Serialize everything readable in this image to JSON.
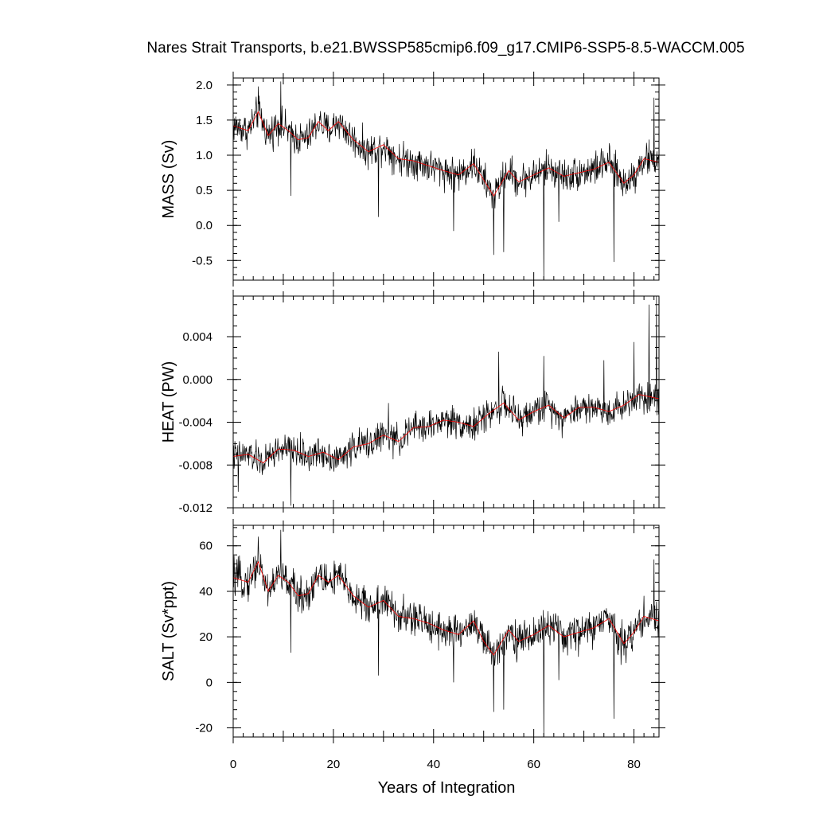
{
  "chart_data": {
    "type": "line",
    "title": "Nares Strait Transports, b.e21.BWSSP585cmip6.f09_g17.CMIP6-SSP5-8.5-WACCM.005",
    "xlabel": "Years of Integration",
    "xlim": [
      0,
      85
    ],
    "x_ticks": [
      0,
      20,
      40,
      60,
      80
    ],
    "x_tick_labels": [
      "0",
      "20",
      "40",
      "60",
      "80"
    ],
    "series_colors": {
      "monthly": "#000000",
      "running_mean": "#ff0000"
    },
    "grid": false,
    "legend": "none",
    "panels": [
      {
        "ylabel": "MASS (Sv)",
        "ylim": [
          -0.78,
          2.1
        ],
        "y_ticks": [
          -0.5,
          0.0,
          0.5,
          1.0,
          1.5,
          2.0
        ],
        "y_tick_labels": [
          "-0.5",
          "0.0",
          "0.5",
          "1.0",
          "1.5",
          "2.0"
        ],
        "y_minor_step": 0.1,
        "anchor_x": [
          0,
          3,
          5,
          7,
          9,
          11,
          13,
          15,
          17,
          19,
          21,
          24,
          27,
          30,
          33,
          36,
          39,
          42,
          45,
          48,
          50,
          52,
          55,
          57,
          60,
          63,
          66,
          69,
          72,
          75,
          78,
          80,
          82,
          85
        ],
        "anchor_mean": [
          1.42,
          1.35,
          1.62,
          1.28,
          1.45,
          1.35,
          1.22,
          1.25,
          1.48,
          1.35,
          1.48,
          1.22,
          1.05,
          1.15,
          0.95,
          0.92,
          0.85,
          0.78,
          0.72,
          0.88,
          0.65,
          0.42,
          0.78,
          0.62,
          0.72,
          0.82,
          0.7,
          0.75,
          0.8,
          0.9,
          0.6,
          0.72,
          0.95,
          0.9
        ],
        "noise_amplitude": 0.3,
        "spikes": [
          [
            5,
            1.98
          ],
          [
            9.5,
            2.05
          ],
          [
            11.5,
            0.42
          ],
          [
            29,
            0.12
          ],
          [
            44,
            -0.08
          ],
          [
            52,
            -0.42
          ],
          [
            54,
            -0.38
          ],
          [
            62,
            -0.78
          ],
          [
            65,
            0.05
          ],
          [
            76,
            -0.52
          ],
          [
            84,
            1.82
          ]
        ]
      },
      {
        "ylabel": "HEAT (PW)",
        "ylim": [
          -0.012,
          0.0078
        ],
        "y_ticks": [
          -0.012,
          -0.008,
          -0.004,
          0.0,
          0.004
        ],
        "y_tick_labels": [
          "-0.012",
          "-0.008",
          "-0.004",
          "0.000",
          "0.004"
        ],
        "y_minor_step": 0.001,
        "anchor_x": [
          0,
          3,
          6,
          9,
          12,
          15,
          18,
          21,
          24,
          27,
          30,
          33,
          36,
          39,
          42,
          45,
          48,
          51,
          54,
          57,
          60,
          63,
          66,
          69,
          72,
          75,
          78,
          81,
          85
        ],
        "anchor_mean": [
          -0.0072,
          -0.007,
          -0.0078,
          -0.0065,
          -0.0066,
          -0.0072,
          -0.0068,
          -0.0075,
          -0.0063,
          -0.006,
          -0.0052,
          -0.0058,
          -0.0045,
          -0.0044,
          -0.0038,
          -0.004,
          -0.0044,
          -0.0032,
          -0.0022,
          -0.0038,
          -0.003,
          -0.0024,
          -0.0036,
          -0.0026,
          -0.0026,
          -0.003,
          -0.0024,
          -0.0014,
          -0.0018
        ],
        "noise_amplitude": 0.0018,
        "spikes": [
          [
            1,
            -0.0105
          ],
          [
            11.5,
            -0.0118
          ],
          [
            31,
            -0.0022
          ],
          [
            53,
            0.0026
          ],
          [
            62,
            0.0022
          ],
          [
            74,
            0.0018
          ],
          [
            80,
            0.0035
          ],
          [
            83,
            0.007
          ],
          [
            84.5,
            0.0078
          ]
        ]
      },
      {
        "ylabel": "SALT (Sv*ppt)",
        "ylim": [
          -24,
          69
        ],
        "y_ticks": [
          -20,
          0,
          20,
          40,
          60
        ],
        "y_tick_labels": [
          "-20",
          "0",
          "20",
          "40",
          "60"
        ],
        "y_minor_step": 4,
        "anchor_x": [
          0,
          3,
          5,
          7,
          9,
          11,
          13,
          15,
          17,
          19,
          21,
          24,
          27,
          30,
          33,
          36,
          39,
          42,
          45,
          48,
          50,
          52,
          55,
          57,
          60,
          63,
          66,
          69,
          72,
          75,
          78,
          80,
          82,
          85
        ],
        "anchor_mean": [
          46,
          44,
          53,
          40,
          47,
          44,
          38,
          39,
          47,
          44,
          47,
          38,
          33,
          36,
          29,
          28,
          26,
          23,
          21,
          27,
          18,
          12,
          23,
          18,
          21,
          25,
          20,
          22,
          24,
          28,
          17,
          22,
          29,
          27
        ],
        "noise_amplitude": 10,
        "spikes": [
          [
            5,
            64
          ],
          [
            9.5,
            67
          ],
          [
            11.5,
            13
          ],
          [
            29,
            3
          ],
          [
            44,
            0
          ],
          [
            52,
            -13
          ],
          [
            54,
            -12
          ],
          [
            62,
            -24
          ],
          [
            65,
            1
          ],
          [
            76,
            -16
          ],
          [
            84,
            54
          ]
        ]
      }
    ]
  }
}
